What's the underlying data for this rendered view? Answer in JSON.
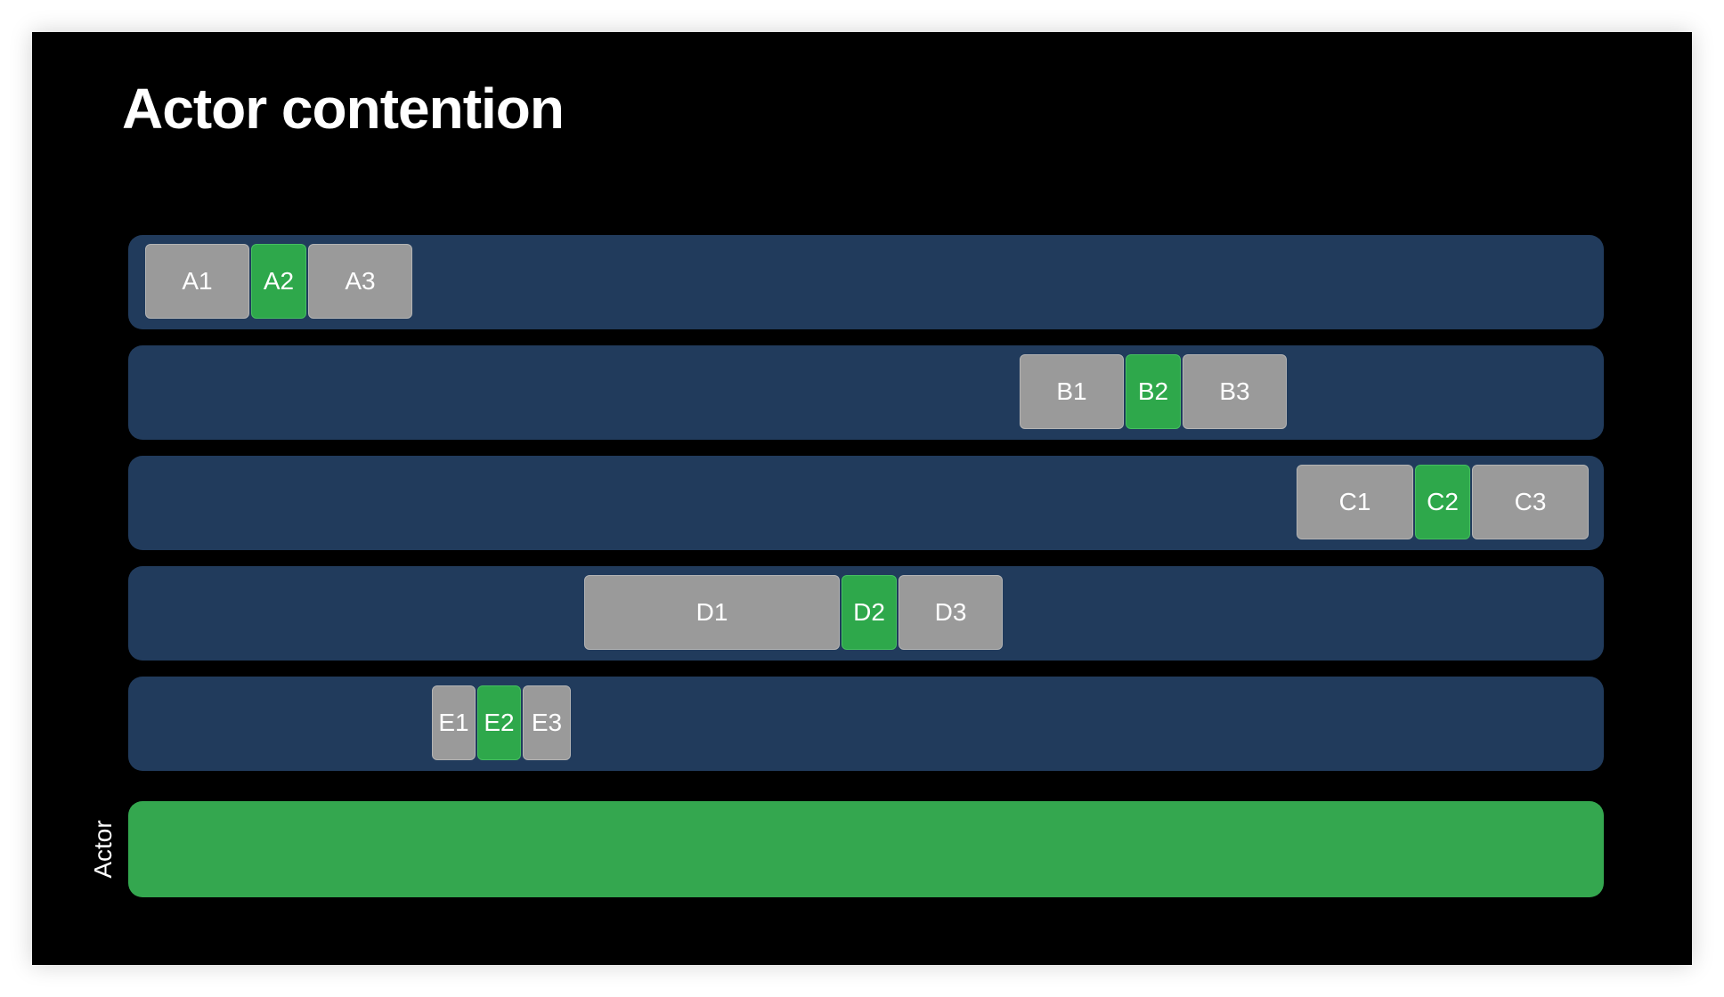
{
  "title": "Actor contention",
  "colors": {
    "background": "#000000",
    "lane": "#213b5c",
    "waiting_block": "#9a9a9a",
    "actor_block": "#2ea84b",
    "actor_bar": "#34a74f"
  },
  "lanes": [
    {
      "blocks": [
        {
          "label": "A1",
          "state": "gray"
        },
        {
          "label": "A2",
          "state": "green"
        },
        {
          "label": "A3",
          "state": "gray"
        }
      ]
    },
    {
      "blocks": [
        {
          "label": "B1",
          "state": "gray"
        },
        {
          "label": "B2",
          "state": "green"
        },
        {
          "label": "B3",
          "state": "gray"
        }
      ]
    },
    {
      "blocks": [
        {
          "label": "C1",
          "state": "gray"
        },
        {
          "label": "C2",
          "state": "green"
        },
        {
          "label": "C3",
          "state": "gray"
        }
      ]
    },
    {
      "blocks": [
        {
          "label": "D1",
          "state": "gray"
        },
        {
          "label": "D2",
          "state": "green"
        },
        {
          "label": "D3",
          "state": "gray"
        }
      ]
    },
    {
      "blocks": [
        {
          "label": "E1",
          "state": "gray"
        },
        {
          "label": "E2",
          "state": "green"
        },
        {
          "label": "E3",
          "state": "gray"
        }
      ]
    }
  ],
  "actor": {
    "label": "Actor"
  }
}
